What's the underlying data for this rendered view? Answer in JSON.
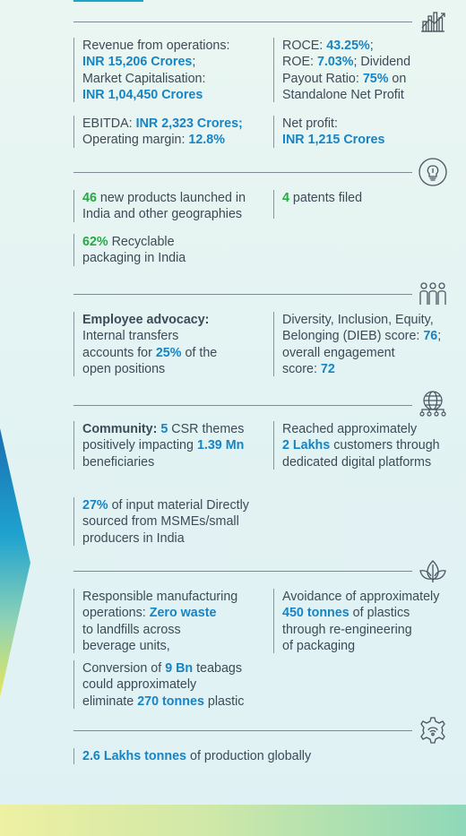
{
  "financial": {
    "revenue": {
      "label1": "Revenue from operations:",
      "value1": "INR 15,206 Crores",
      "suffix1": ";",
      "label2": "Market Capitalisation:",
      "value2": "INR 1,04,450 Crores"
    },
    "ratios": {
      "roce_label": "ROCE: ",
      "roce_value": "43.25%",
      "roce_suffix": ";",
      "roe_label": "ROE: ",
      "roe_value": "7.03%",
      "dividend_label": "; Dividend",
      "payout_label": "Payout Ratio: ",
      "payout_value": "75%",
      "payout_suffix": " on",
      "standalone": "Standalone Net Profit"
    },
    "ebitda": {
      "label": "EBITDA: ",
      "value": "INR 2,323 Crores;",
      "margin_label": "Operating margin: ",
      "margin_value": "12.8%"
    },
    "net_profit": {
      "label": "Net profit:",
      "value": "INR 1,215 Crores"
    }
  },
  "innovation": {
    "products": {
      "value": "46",
      "text1": " new products launched in",
      "text2": "India and other geographies"
    },
    "patents": {
      "value": "4",
      "text": " patents filed"
    },
    "packaging": {
      "value": "62%",
      "text1": " Recyclable",
      "text2": "packaging in India"
    }
  },
  "people": {
    "advocacy": {
      "title": "Employee advocacy:",
      "line1": "Internal transfers",
      "line2a": "accounts for ",
      "value": "25%",
      "line2b": " of the",
      "line3": "open positions"
    },
    "dieb": {
      "line1": "Diversity, Inclusion, Equity,",
      "line2a": "Belonging (DIEB) score: ",
      "score": "76",
      "line2b": ";",
      "line3": "overall engagement",
      "line4a": "score: ",
      "engagement": "72"
    }
  },
  "social": {
    "community": {
      "title": "Community: ",
      "themes": "5",
      "line1b": " CSR themes",
      "line2a": "positively impacting ",
      "beneficiaries": "1.39 Mn",
      "line3": "beneficiaries"
    },
    "digital": {
      "line1": "Reached approximately",
      "value": "2 Lakhs",
      "line2b": " customers through",
      "line3": "dedicated digital platforms"
    },
    "msme": {
      "value": "27%",
      "line1b": " of input material Directly",
      "line2": "sourced from MSMEs/small",
      "line3": "producers in India"
    }
  },
  "environment": {
    "manufacturing": {
      "line1": "Responsible manufacturing",
      "line2a": "operations: ",
      "value": "Zero waste",
      "line3": "to landfills across",
      "line4": "beverage units,"
    },
    "plastics": {
      "line1": "Avoidance of approximately",
      "value": "450 tonnes",
      "line2b": " of plastics",
      "line3": "through re-engineering",
      "line4": "of packaging"
    },
    "teabags": {
      "line1a": "Conversion of ",
      "value1": "9 Bn",
      "line1b": " teabags",
      "line2": "could approximately",
      "line3a": "eliminate ",
      "value2": "270 tonnes",
      "line3b": " plastic"
    }
  },
  "production": {
    "value": "2.6 Lakhs tonnes",
    "text": " of production globally"
  },
  "icons": [
    "chart-icon",
    "lightbulb-icon",
    "people-icon",
    "globe-network-icon",
    "leaf-icon",
    "gear-icon"
  ],
  "colors": {
    "highlight_blue": "#1784c4",
    "highlight_green": "#27a844",
    "text": "#3d4b57"
  }
}
